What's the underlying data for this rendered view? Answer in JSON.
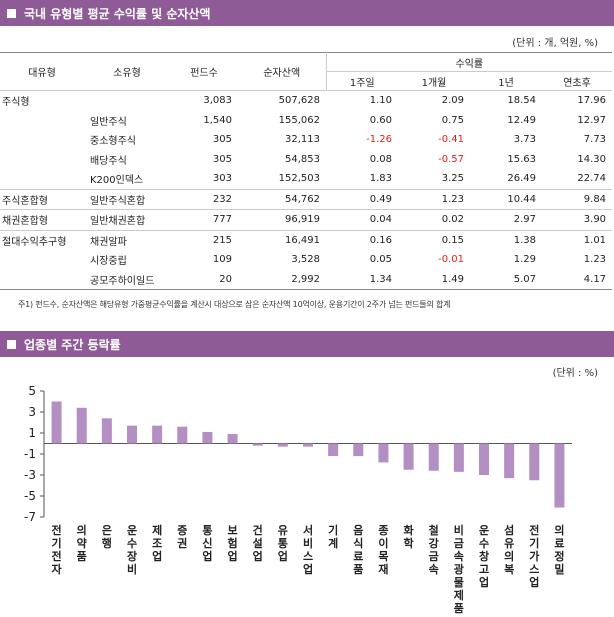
{
  "section1": {
    "title": "국내 유형별 평균 수익률 및 순자산액",
    "unit": "(단위 : 개, 억원, %)",
    "headers": {
      "type": "대유형",
      "subtype": "소유형",
      "funds": "펀드수",
      "assets": "순자산액",
      "returns": "수익률",
      "periods": [
        "1주일",
        "1개월",
        "1년",
        "연초후"
      ]
    },
    "rows": [
      {
        "cat": "주식형",
        "sub": "",
        "funds": "3,083",
        "assets": "507,628",
        "r": [
          "1.10",
          "2.09",
          "18.54",
          "17.96"
        ],
        "grp": true
      },
      {
        "cat": "",
        "sub": "일반주식",
        "funds": "1,540",
        "assets": "155,062",
        "r": [
          "0.60",
          "0.75",
          "12.49",
          "12.97"
        ]
      },
      {
        "cat": "",
        "sub": "중소형주식",
        "funds": "305",
        "assets": "32,113",
        "r": [
          "-1.26",
          "-0.41",
          "3.73",
          "7.73"
        ]
      },
      {
        "cat": "",
        "sub": "배당주식",
        "funds": "305",
        "assets": "54,853",
        "r": [
          "0.08",
          "-0.57",
          "15.63",
          "14.30"
        ]
      },
      {
        "cat": "",
        "sub": "K200인덱스",
        "funds": "303",
        "assets": "152,503",
        "r": [
          "1.83",
          "3.25",
          "26.49",
          "22.74"
        ]
      },
      {
        "cat": "주식혼합형",
        "sub": "일반주식혼합",
        "funds": "232",
        "assets": "54,762",
        "r": [
          "0.49",
          "1.23",
          "10.44",
          "9.84"
        ],
        "grp": true
      },
      {
        "cat": "채권혼합형",
        "sub": "일반채권혼합",
        "funds": "777",
        "assets": "96,919",
        "r": [
          "0.04",
          "0.02",
          "2.97",
          "3.90"
        ],
        "grp": true
      },
      {
        "cat": "절대수익추구형",
        "sub": "채권알파",
        "funds": "215",
        "assets": "16,491",
        "r": [
          "0.16",
          "0.15",
          "1.38",
          "1.01"
        ],
        "grp": true
      },
      {
        "cat": "",
        "sub": "시장중립",
        "funds": "109",
        "assets": "3,528",
        "r": [
          "0.05",
          "-0.01",
          "1.29",
          "1.23"
        ]
      },
      {
        "cat": "",
        "sub": "공모주하이일드",
        "funds": "20",
        "assets": "2,992",
        "r": [
          "1.34",
          "1.49",
          "5.07",
          "4.17"
        ],
        "last": true
      }
    ],
    "note": "주1) 펀드수, 순자산액은 해당유형 가중평균수익률을 계산시 대상으로 삼은 순자산액 10억이상, 운용기간이 2주가 넘는 펀드들의 합계"
  },
  "section2": {
    "title": "업종별 주간 등락률",
    "unit": "(단위 : %)"
  },
  "chart_data": {
    "type": "bar",
    "title": "업종별 주간 등락률",
    "xlabel": "",
    "ylabel": "",
    "ylim": [
      -7,
      5
    ],
    "yticks": [
      5,
      3,
      1,
      -1,
      -3,
      -5,
      -7
    ],
    "grid": false,
    "bar_color": "#b48fc4",
    "categories": [
      "전기전자",
      "의약품",
      "은행",
      "운수장비",
      "제조업",
      "증권",
      "통신업",
      "보험업",
      "건설업",
      "유통업",
      "서비스업",
      "기계",
      "음식료품",
      "종이목재",
      "화학",
      "철강금속",
      "비금속광물제품",
      "운수창고업",
      "섬유의복",
      "전기가스업",
      "의료정밀"
    ],
    "values": [
      4.0,
      3.4,
      2.4,
      1.7,
      1.7,
      1.6,
      1.1,
      0.9,
      -0.2,
      -0.3,
      -0.3,
      -1.2,
      -1.2,
      -1.8,
      -2.5,
      -2.6,
      -2.7,
      -3.0,
      -3.3,
      -3.5,
      -6.1
    ]
  }
}
